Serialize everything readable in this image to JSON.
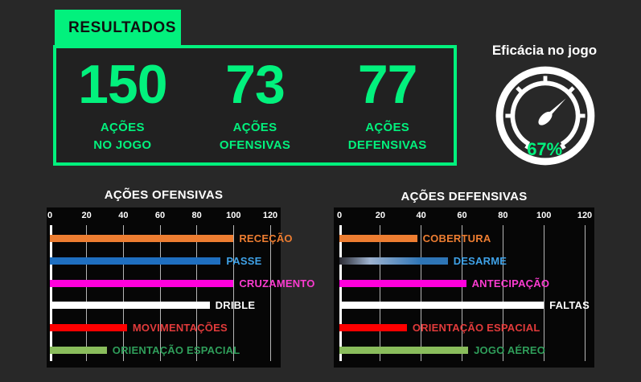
{
  "page": {
    "background": "#282828",
    "accent_green": "#02F17D"
  },
  "results": {
    "tab_label": "RESULTADOS",
    "stats": [
      {
        "value": "150",
        "label_line1": "AÇÕES",
        "label_line2": "NO JOGO"
      },
      {
        "value": "73",
        "label_line1": "AÇÕES",
        "label_line2": "OFENSIVAS"
      },
      {
        "value": "77",
        "label_line1": "AÇÕES",
        "label_line2": "DEFENSIVAS"
      }
    ]
  },
  "gauge": {
    "title": "Eficácia no jogo",
    "percent": 67,
    "value_label": "67%",
    "icon_color": "#ffffff"
  },
  "chart_data": [
    {
      "type": "bar",
      "orientation": "horizontal",
      "title": "AÇÕES OFENSIVAS",
      "xlim": [
        0,
        120
      ],
      "ticks": [
        0,
        20,
        40,
        60,
        80,
        100,
        120
      ],
      "grid": true,
      "categories": [
        "RECEÇÃO",
        "PASSE",
        "CRUZAMENTO",
        "DRIBLE",
        "MOVIMENTAÇÕES",
        "ORIENTAÇÃO ESPACIAL"
      ],
      "values": [
        100,
        93,
        100,
        87,
        42,
        31
      ],
      "bar_colors": [
        "#ED7D31",
        "#1F6FC0",
        "#FF00DC",
        "#FFFFFF",
        "#FF0000",
        "#8ABD5C"
      ],
      "label_colors": [
        "#ED7D31",
        "#3FA2E8",
        "#FB3BD0",
        "#FFFFFF",
        "#E23B3B",
        "#2F9E5A"
      ]
    },
    {
      "type": "bar",
      "orientation": "horizontal",
      "title": "AÇÕES DEFENSIVAS",
      "xlim": [
        0,
        120
      ],
      "ticks": [
        0,
        20,
        40,
        60,
        80,
        100,
        120
      ],
      "grid": true,
      "categories": [
        "COBERTURA",
        "DESARME",
        "ANTECIPAÇÃO",
        "FALTAS",
        "ORIENTAÇÃO ESPACIAL",
        "JOGO AÉREO"
      ],
      "values": [
        38,
        53,
        62,
        100,
        33,
        63
      ],
      "bar_colors": [
        "#ED7D31",
        "linear-gradient(90deg,#2b2b33 0%,#9eb3d0 28%,#2e75b6 75%)",
        "#FF00DC",
        "#FFFFFF",
        "#FF0000",
        "#8ABD5C"
      ],
      "label_colors": [
        "#ED7D31",
        "#3FA2E8",
        "#FB3BD0",
        "#FFFFFF",
        "#E23B3B",
        "#2F9E5A"
      ]
    }
  ]
}
